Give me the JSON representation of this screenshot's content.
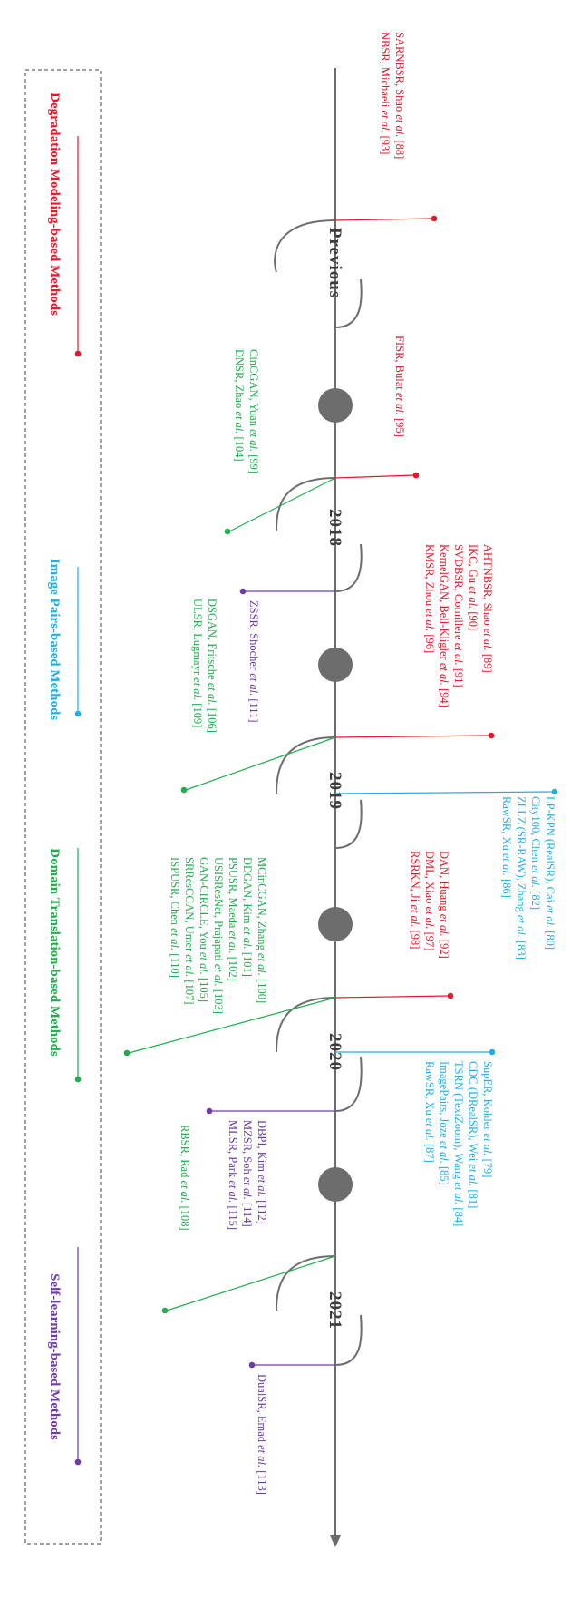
{
  "colors": {
    "degradation": "#e4172b",
    "pairs": "#20aee6",
    "domain": "#1fad4e",
    "self": "#6f3aa8",
    "axis": "#6d6d6d"
  },
  "legend": [
    {
      "label": "Degradation Modeling-based Methods",
      "color": "#e4172b"
    },
    {
      "label": "Image Pairs-based Methods",
      "color": "#20aee6"
    },
    {
      "label": "Domain Translation-based Methods",
      "color": "#1fad4e"
    },
    {
      "label": "Self-learning-based Methods",
      "color": "#6f3aa8"
    }
  ],
  "periods": [
    "Previous",
    "2018",
    "2019",
    "2020",
    "2021"
  ],
  "groups": {
    "previous_red": {
      "lines": [
        {
          "plain": "SARNBSR, Shao ",
          "ital": "et al.",
          "rest": " [88]"
        },
        {
          "plain": "NBSR, Michaeli ",
          "ital": "et al.",
          "rest": " [93]"
        }
      ]
    },
    "r2018_red": {
      "lines": [
        {
          "plain": "FISR, Bulat ",
          "ital": "et al.",
          "rest": " [95]"
        }
      ]
    },
    "r2018_green": {
      "lines": [
        {
          "plain": "CinCGAN, Yuan ",
          "ital": "et al.",
          "rest": " [99]"
        },
        {
          "plain": "DNSR, Zhao ",
          "ital": "et al.",
          "rest": " [104]"
        }
      ]
    },
    "r2019_red": {
      "lines": [
        {
          "plain": "AHTNBSR, Shao ",
          "ital": "et al.",
          "rest": " [89]"
        },
        {
          "plain": "IKC, Gu ",
          "ital": "et al.",
          "rest": " [90]"
        },
        {
          "plain": "SVDBSR, Cornillere ",
          "ital": "et al.",
          "rest": " [91]"
        },
        {
          "plain": "KernelGAN, Bell-Kligler ",
          "ital": "et al.",
          "rest": " [94]"
        },
        {
          "plain": "KMSR, Zhou ",
          "ital": "et al.",
          "rest": " [96]"
        }
      ]
    },
    "r2019_purple": {
      "lines": [
        {
          "plain": "ZSSR, Shocher ",
          "ital": "et al.",
          "rest": " [111]"
        }
      ]
    },
    "r2019_green": {
      "lines": [
        {
          "plain": "DSGAN, Fritsche ",
          "ital": "et al.",
          "rest": " [106]"
        },
        {
          "plain": "ULSR, Lugmayr ",
          "ital": "et al.",
          "rest": " [109]"
        }
      ]
    },
    "r2020_blue": {
      "lines": [
        {
          "plain": "LP-KPN (RealSR), Cai ",
          "ital": "et al.",
          "rest": " [80]"
        },
        {
          "plain": "City100, Chen ",
          "ital": "et al.",
          "rest": " [82]"
        },
        {
          "plain": "ZLLZ (SR-RAW), Zhang ",
          "ital": "et al.",
          "rest": " [83]"
        },
        {
          "plain": "RawSR, Xu ",
          "ital": "et al.",
          "rest": " [86]"
        }
      ]
    },
    "r2020_red": {
      "lines": [
        {
          "plain": "DAN, Huang ",
          "ital": "et al.",
          "rest": " [92]"
        },
        {
          "plain": "DML, Xiao ",
          "ital": "et al.",
          "rest": " [97]"
        },
        {
          "plain": "RSRKN, Ji ",
          "ital": "et al.",
          "rest": " [98]"
        }
      ]
    },
    "r2020_green": {
      "lines": [
        {
          "plain": "MCinCGAN, Zhang ",
          "ital": "et al.",
          "rest": " [100]"
        },
        {
          "plain": "DDGAN, Kim ",
          "ital": "et al.",
          "rest": " [101]"
        },
        {
          "plain": "PSUSR, Maeda ",
          "ital": "et al.",
          "rest": " [102]"
        },
        {
          "plain": "USISResNet, Prajapati ",
          "ital": "et al.",
          "rest": " [103]"
        },
        {
          "plain": "GAN-CIRCLE, You ",
          "ital": "et al.",
          "rest": " [105]"
        },
        {
          "plain": "SRResCGAN, Umer ",
          "ital": "et al.",
          "rest": " [107]"
        },
        {
          "plain": "ISPUSR, Chen ",
          "ital": "et al.",
          "rest": " [110]"
        }
      ]
    },
    "r2021_blue": {
      "lines": [
        {
          "plain": "SupER, Kohler ",
          "ital": "et al.",
          "rest": " [79]"
        },
        {
          "plain": "CDC (DRealSR), Wei ",
          "ital": "et al.",
          "rest": " [81]"
        },
        {
          "plain": "TSRN (TextZoom), Wang ",
          "ital": "et al.",
          "rest": " [84]"
        },
        {
          "plain": "ImagePairs, Joze ",
          "ital": "et al.",
          "rest": " [85]"
        },
        {
          "plain": "RawSR, Xu ",
          "ital": "et al.",
          "rest": " [87]"
        }
      ]
    },
    "r2021_purple": {
      "lines": [
        {
          "plain": "DBPI, Kim ",
          "ital": "et al.",
          "rest": " [112]"
        },
        {
          "plain": "MZSR, Soh ",
          "ital": "et al.",
          "rest": " [114]"
        },
        {
          "plain": "MLSR, Park ",
          "ital": "et al.",
          "rest": " [115]"
        }
      ]
    },
    "r2021_green": {
      "lines": [
        {
          "plain": "RBSR, Rad ",
          "ital": "et al.",
          "rest": " [108]"
        }
      ]
    },
    "after_purple": {
      "lines": [
        {
          "plain": "DualSR, Emad ",
          "ital": "et al.",
          "rest": " [113]"
        }
      ]
    }
  }
}
